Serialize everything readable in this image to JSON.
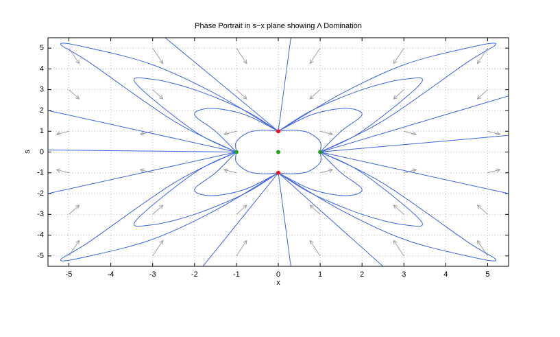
{
  "chart_data": {
    "type": "phase-portrait",
    "title": "Phase Portrait in s−x plane showing Λ Domination",
    "xlabel": "x",
    "ylabel": "s",
    "xlim": [
      -5.5,
      5.5
    ],
    "ylim": [
      -5.5,
      5.5
    ],
    "xticks": [
      -5,
      -4,
      -3,
      -2,
      -1,
      0,
      1,
      2,
      3,
      4,
      5
    ],
    "yticks": [
      -5,
      -4,
      -3,
      -2,
      -1,
      0,
      1,
      2,
      3,
      4,
      5
    ],
    "grid": true,
    "quiver": {
      "color": "#a0a0a0",
      "x": [
        -5,
        -3,
        -1,
        1,
        3,
        5
      ],
      "s": [
        5,
        3,
        1,
        -1,
        -3,
        -5
      ],
      "u": [
        [
          0.5,
          0.5,
          0.5,
          -0.5,
          -0.5,
          -0.5
        ],
        [
          0.5,
          0.5,
          0.5,
          -0.5,
          -0.5,
          -0.5
        ],
        [
          -0.6,
          -0.6,
          -0.6,
          0.6,
          0.6,
          0.6
        ],
        [
          -0.6,
          -0.6,
          -0.6,
          0.6,
          0.6,
          0.6
        ],
        [
          0.5,
          0.5,
          0.5,
          -0.5,
          -0.5,
          -0.5
        ],
        [
          0.5,
          0.5,
          0.5,
          -0.5,
          -0.5,
          -0.5
        ]
      ],
      "v": [
        [
          -0.75,
          -0.75,
          -0.75,
          -0.75,
          -0.75,
          -0.75
        ],
        [
          -0.45,
          -0.45,
          -0.45,
          -0.45,
          -0.45,
          -0.45
        ],
        [
          -0.15,
          -0.15,
          -0.15,
          -0.15,
          -0.15,
          -0.15
        ],
        [
          0.15,
          0.15,
          0.15,
          0.15,
          0.15,
          0.15
        ],
        [
          0.45,
          0.45,
          0.45,
          0.45,
          0.45,
          0.45
        ],
        [
          0.75,
          0.75,
          0.75,
          0.75,
          0.75,
          0.75
        ]
      ]
    },
    "trajectories": {
      "color": "#3f63e0",
      "lines": [
        {
          "x": [
            -1,
            -2.5,
            -4.5,
            -5.2,
            -4.5,
            -3,
            -1.5,
            0
          ],
          "values": [
            0,
            1.5,
            4.3,
            5.2,
            5,
            4.2,
            2.8,
            1
          ]
        },
        {
          "x": [
            -1,
            -2,
            -3.4,
            -3,
            -2,
            -0.8,
            0
          ],
          "values": [
            0,
            1,
            3.3,
            3.5,
            3,
            2,
            1
          ]
        },
        {
          "x": [
            -1,
            -1.5,
            -2,
            -1.6,
            -0.8,
            0
          ],
          "values": [
            0,
            1,
            1.8,
            2.1,
            1.8,
            1
          ]
        },
        {
          "x": [
            -1,
            -1,
            -0.7,
            -0.3,
            0
          ],
          "values": [
            0,
            0.5,
            0.95,
            1.05,
            1
          ]
        },
        {
          "x": [
            1,
            2.5,
            4.5,
            5.2,
            4.5,
            3,
            1.5,
            0
          ],
          "values": [
            0,
            1.5,
            4.3,
            5.2,
            5,
            4.2,
            2.8,
            1
          ]
        },
        {
          "x": [
            1,
            2,
            3.4,
            3,
            2,
            0.8,
            0
          ],
          "values": [
            0,
            1,
            3.3,
            3.5,
            3,
            2,
            1
          ]
        },
        {
          "x": [
            1,
            1.5,
            2,
            1.6,
            0.8,
            0
          ],
          "values": [
            0,
            1,
            1.8,
            2.1,
            1.8,
            1
          ]
        },
        {
          "x": [
            1,
            1,
            0.7,
            0.3,
            0
          ],
          "values": [
            0,
            0.5,
            0.95,
            1.05,
            1
          ]
        },
        {
          "x": [
            -1,
            -2.5,
            -4.5,
            -5.2,
            -4.5,
            -3,
            -1.5,
            0
          ],
          "values": [
            0,
            -1.5,
            -4.3,
            -5.2,
            -5,
            -4.2,
            -2.8,
            -1
          ]
        },
        {
          "x": [
            -1,
            -2,
            -3.4,
            -3,
            -2,
            -0.8,
            0
          ],
          "values": [
            0,
            -1,
            -3.3,
            -3.5,
            -3,
            -2,
            -1
          ]
        },
        {
          "x": [
            -1,
            -1.5,
            -2,
            -1.6,
            -0.8,
            0
          ],
          "values": [
            0,
            -1,
            -1.8,
            -2.1,
            -1.8,
            -1
          ]
        },
        {
          "x": [
            -1,
            -1,
            -0.7,
            -0.3,
            0
          ],
          "values": [
            0,
            -0.5,
            -0.95,
            -1.05,
            -1
          ]
        },
        {
          "x": [
            1,
            2.5,
            4.5,
            5.2,
            4.5,
            3,
            1.5,
            0
          ],
          "values": [
            0,
            -1.5,
            -4.3,
            -5.2,
            -5,
            -4.2,
            -2.8,
            -1
          ]
        },
        {
          "x": [
            1,
            2,
            3.4,
            3,
            2,
            0.8,
            0
          ],
          "values": [
            0,
            -1,
            -3.3,
            -3.5,
            -3,
            -2,
            -1
          ]
        },
        {
          "x": [
            1,
            1.5,
            2,
            1.6,
            0.8,
            0
          ],
          "values": [
            0,
            -1,
            -1.8,
            -2.1,
            -1.8,
            -1
          ]
        },
        {
          "x": [
            1,
            1,
            0.7,
            0.3,
            0
          ],
          "values": [
            0,
            -0.5,
            -0.95,
            -1.05,
            -1
          ]
        },
        {
          "x": [
            0,
            -2.7
          ],
          "values": [
            1,
            5.5
          ]
        },
        {
          "x": [
            0,
            0.3
          ],
          "values": [
            1,
            5.5
          ]
        },
        {
          "x": [
            1,
            5.5
          ],
          "values": [
            0,
            2.7
          ]
        },
        {
          "x": [
            1,
            5.5
          ],
          "values": [
            0,
            0.8
          ]
        },
        {
          "x": [
            1,
            5.5
          ],
          "values": [
            0,
            -2
          ]
        },
        {
          "x": [
            -1,
            -5.5
          ],
          "values": [
            0,
            2
          ]
        },
        {
          "x": [
            -1,
            -5.5
          ],
          "values": [
            0,
            0.1
          ]
        },
        {
          "x": [
            -1,
            -5.5
          ],
          "values": [
            0,
            -2
          ]
        },
        {
          "x": [
            0,
            -1.8
          ],
          "values": [
            -1,
            -5.5
          ]
        },
        {
          "x": [
            0,
            0.3
          ],
          "values": [
            -1,
            -5.5
          ]
        },
        {
          "x": [
            0,
            2.5
          ],
          "values": [
            -1,
            -5.5
          ]
        }
      ]
    },
    "fixed_points": [
      {
        "color": "#e8141c",
        "x": [
          0,
          0
        ],
        "values": [
          1,
          -1
        ]
      },
      {
        "color": "#22a020",
        "x": [
          -1,
          1,
          0
        ],
        "values": [
          0,
          0,
          0
        ]
      }
    ]
  }
}
